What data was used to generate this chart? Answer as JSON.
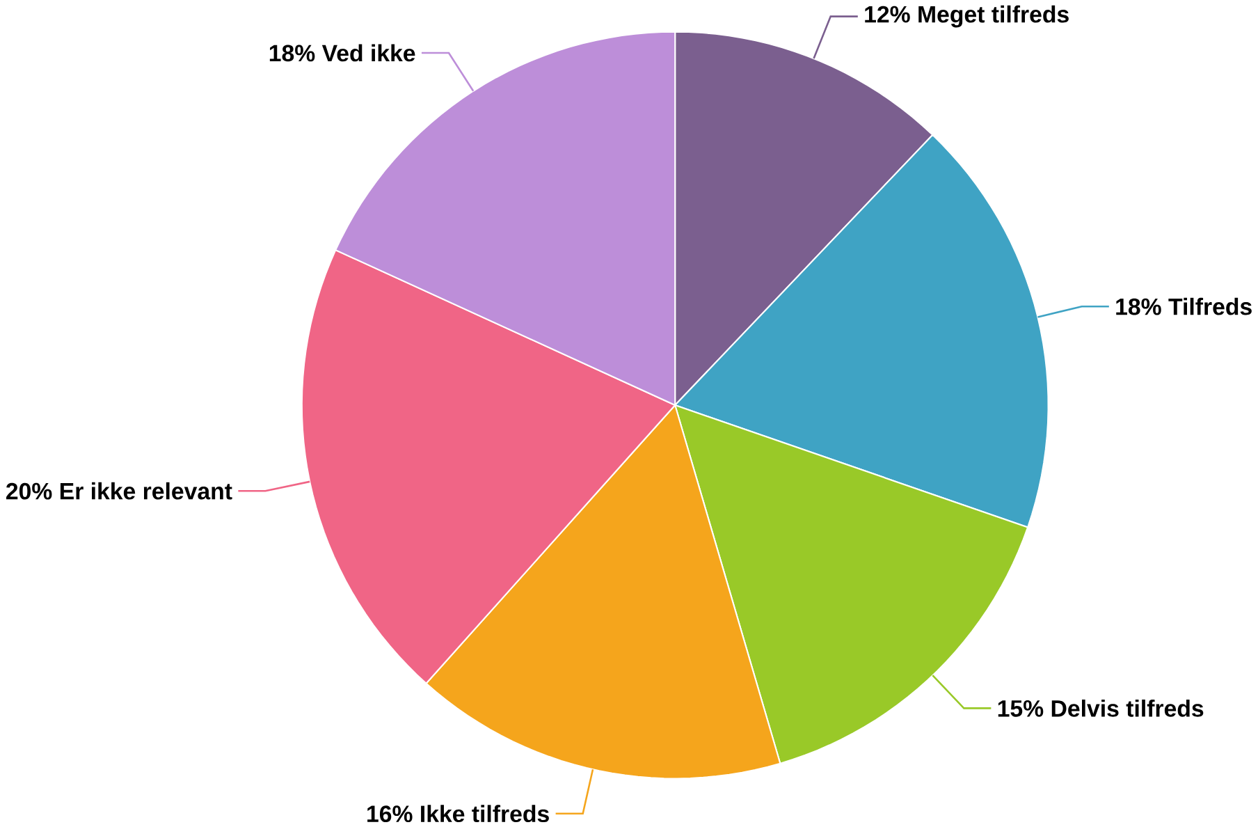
{
  "chart_data": {
    "type": "pie",
    "categories": [
      "Meget tilfreds",
      "Tilfreds",
      "Delvis tilfreds",
      "Ikke tilfreds",
      "Er ikke relevant",
      "Ved ikke"
    ],
    "values": [
      12,
      18,
      15,
      16,
      20,
      18
    ],
    "value_labels": [
      "12%",
      "18%",
      "15%",
      "16%",
      "20%",
      "18%"
    ],
    "colors": [
      "#7b5f8f",
      "#3fa3c4",
      "#99c928",
      "#f5a51c",
      "#f06586",
      "#bd8ed9"
    ]
  }
}
